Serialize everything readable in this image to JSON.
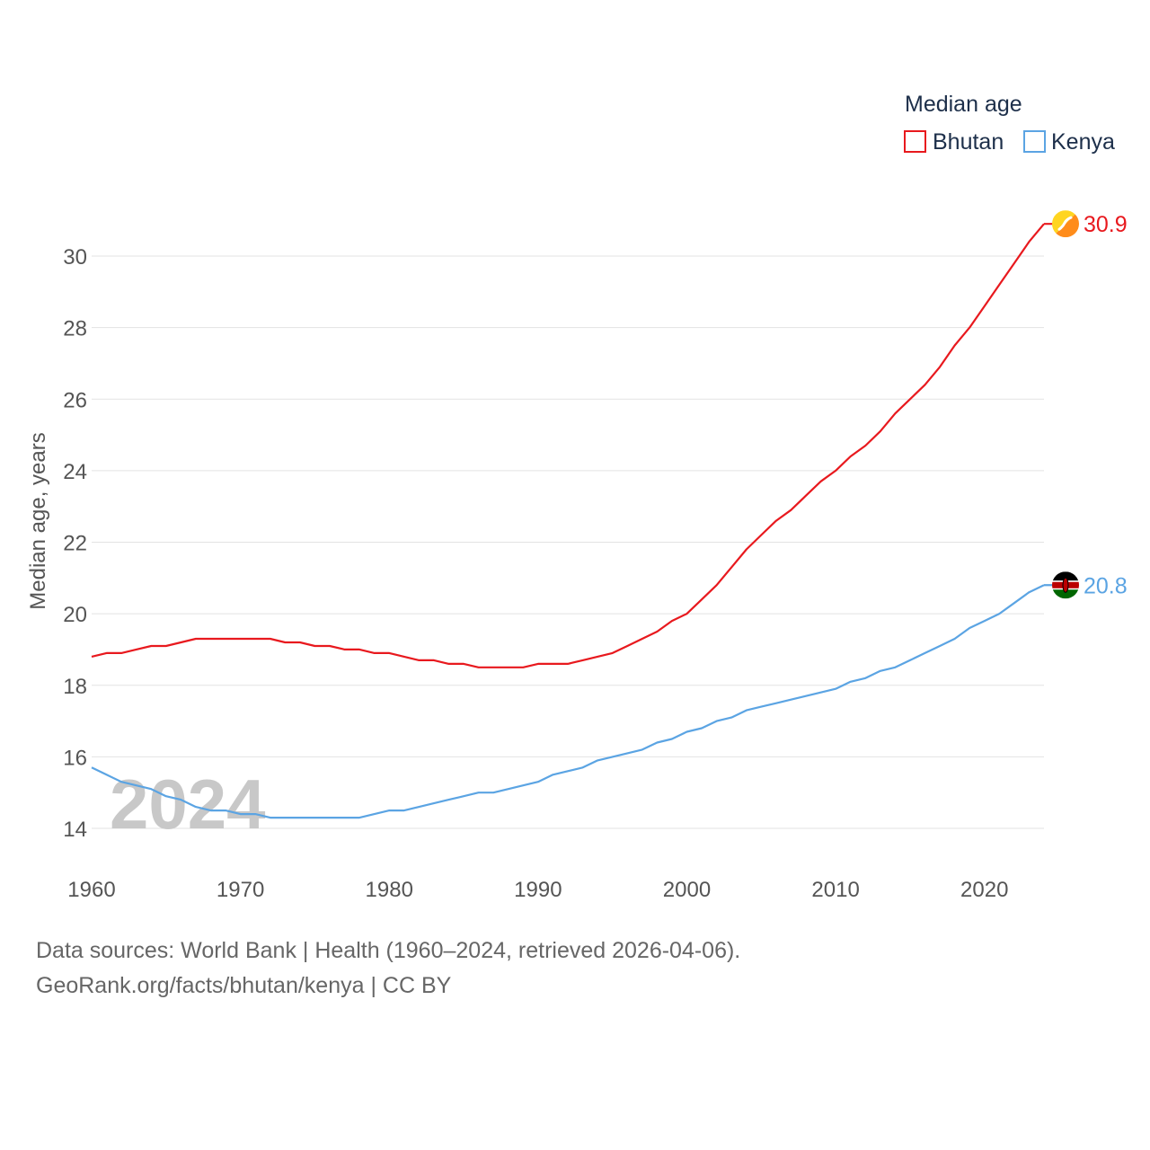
{
  "chart_data": {
    "type": "line",
    "legend_title": "Median age",
    "legend_position": "top-right",
    "ylabel": "Median age, years",
    "xlabel": "",
    "ylim": [
      12.9,
      31.4
    ],
    "xlim": [
      1960,
      2024
    ],
    "y_ticks": [
      14,
      16,
      18,
      20,
      22,
      24,
      26,
      28,
      30
    ],
    "x_ticks": [
      1960,
      1970,
      1980,
      1990,
      2000,
      2010,
      2020
    ],
    "grid": true,
    "year_watermark": "2024",
    "series": [
      {
        "name": "Bhutan",
        "color": "#e8191e",
        "icon": "bhutan-flag-icon",
        "end_label": "30.9",
        "x": [
          1960,
          1961,
          1962,
          1963,
          1964,
          1965,
          1966,
          1967,
          1968,
          1969,
          1970,
          1971,
          1972,
          1973,
          1974,
          1975,
          1976,
          1977,
          1978,
          1979,
          1980,
          1981,
          1982,
          1983,
          1984,
          1985,
          1986,
          1987,
          1988,
          1989,
          1990,
          1991,
          1992,
          1993,
          1994,
          1995,
          1996,
          1997,
          1998,
          1999,
          2000,
          2001,
          2002,
          2003,
          2004,
          2005,
          2006,
          2007,
          2008,
          2009,
          2010,
          2011,
          2012,
          2013,
          2014,
          2015,
          2016,
          2017,
          2018,
          2019,
          2020,
          2021,
          2022,
          2023,
          2024
        ],
        "values": [
          18.8,
          18.9,
          18.9,
          19.0,
          19.1,
          19.1,
          19.2,
          19.3,
          19.3,
          19.3,
          19.3,
          19.3,
          19.3,
          19.2,
          19.2,
          19.1,
          19.1,
          19.0,
          19.0,
          18.9,
          18.9,
          18.8,
          18.7,
          18.7,
          18.6,
          18.6,
          18.5,
          18.5,
          18.5,
          18.5,
          18.6,
          18.6,
          18.6,
          18.7,
          18.8,
          18.9,
          19.1,
          19.3,
          19.5,
          19.8,
          20.0,
          20.4,
          20.8,
          21.3,
          21.8,
          22.2,
          22.6,
          22.9,
          23.3,
          23.7,
          24.0,
          24.4,
          24.7,
          25.1,
          25.6,
          26.0,
          26.4,
          26.9,
          27.5,
          28.0,
          28.6,
          29.2,
          29.8,
          30.4,
          30.9
        ]
      },
      {
        "name": "Kenya",
        "color": "#5ba4e3",
        "icon": "kenya-flag-icon",
        "end_label": "20.8",
        "x": [
          1960,
          1961,
          1962,
          1963,
          1964,
          1965,
          1966,
          1967,
          1968,
          1969,
          1970,
          1971,
          1972,
          1973,
          1974,
          1975,
          1976,
          1977,
          1978,
          1979,
          1980,
          1981,
          1982,
          1983,
          1984,
          1985,
          1986,
          1987,
          1988,
          1989,
          1990,
          1991,
          1992,
          1993,
          1994,
          1995,
          1996,
          1997,
          1998,
          1999,
          2000,
          2001,
          2002,
          2003,
          2004,
          2005,
          2006,
          2007,
          2008,
          2009,
          2010,
          2011,
          2012,
          2013,
          2014,
          2015,
          2016,
          2017,
          2018,
          2019,
          2020,
          2021,
          2022,
          2023,
          2024
        ],
        "values": [
          15.7,
          15.5,
          15.3,
          15.2,
          15.1,
          14.9,
          14.8,
          14.6,
          14.5,
          14.5,
          14.4,
          14.4,
          14.3,
          14.3,
          14.3,
          14.3,
          14.3,
          14.3,
          14.3,
          14.4,
          14.5,
          14.5,
          14.6,
          14.7,
          14.8,
          14.9,
          15.0,
          15.0,
          15.1,
          15.2,
          15.3,
          15.5,
          15.6,
          15.7,
          15.9,
          16.0,
          16.1,
          16.2,
          16.4,
          16.5,
          16.7,
          16.8,
          17.0,
          17.1,
          17.3,
          17.4,
          17.5,
          17.6,
          17.7,
          17.8,
          17.9,
          18.1,
          18.2,
          18.4,
          18.5,
          18.7,
          18.9,
          19.1,
          19.3,
          19.6,
          19.8,
          20.0,
          20.3,
          20.6,
          20.8
        ]
      }
    ]
  },
  "footer": {
    "source_line": "Data sources: World Bank | Health (1960–2024, retrieved 2026-04-06).",
    "credit_line": "GeoRank.org/facts/bhutan/kenya | CC BY"
  }
}
